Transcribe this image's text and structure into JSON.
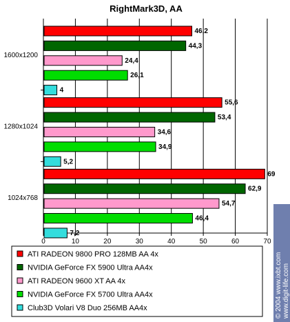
{
  "chart_data": {
    "type": "bar",
    "orientation": "horizontal",
    "title": "RightMark3D, AA",
    "xlabel": "",
    "ylabel": "",
    "xlim": [
      0,
      70
    ],
    "x_ticks": [
      "0",
      "10",
      "20",
      "30",
      "40",
      "50",
      "60",
      "70"
    ],
    "grid": "vertical",
    "legend_position": "bottom",
    "categories": [
      "1600x1200",
      "1280x1024",
      "1024x768"
    ],
    "series": [
      {
        "name": "ATI RADEON 9800 PRO 128MB AA 4x",
        "color": "#ff0000",
        "values": [
          46.2,
          55.6,
          69
        ],
        "labels": [
          "46,2",
          "55,6",
          "69"
        ]
      },
      {
        "name": "NVIDIA GeForce FX 5900 Ultra AA4x",
        "color": "#006600",
        "values": [
          44.3,
          53.4,
          62.9
        ],
        "labels": [
          "44,3",
          "53,4",
          "62,9"
        ]
      },
      {
        "name": "ATI RADEON 9600 XT AA 4x",
        "color": "#ff99cc",
        "values": [
          24.4,
          34.6,
          54.7
        ],
        "labels": [
          "24,4",
          "34,6",
          "54,7"
        ]
      },
      {
        "name": "NVIDIA GeForce FX 5700 Ultra AA4x",
        "color": "#00dd00",
        "values": [
          26.1,
          34.9,
          46.4
        ],
        "labels": [
          "26,1",
          "34,9",
          "46,4"
        ]
      },
      {
        "name": "Club3D Volari V8 Duo 256MB AA4x",
        "color": "#33dddd",
        "values": [
          4,
          5.2,
          7.2
        ],
        "labels": [
          "4",
          "5,2",
          "7,2"
        ]
      }
    ]
  },
  "watermark": {
    "line1": "© 2004 www.ixbt.com",
    "line2": "www.digit-life.com",
    "color": "#6f7fae"
  }
}
